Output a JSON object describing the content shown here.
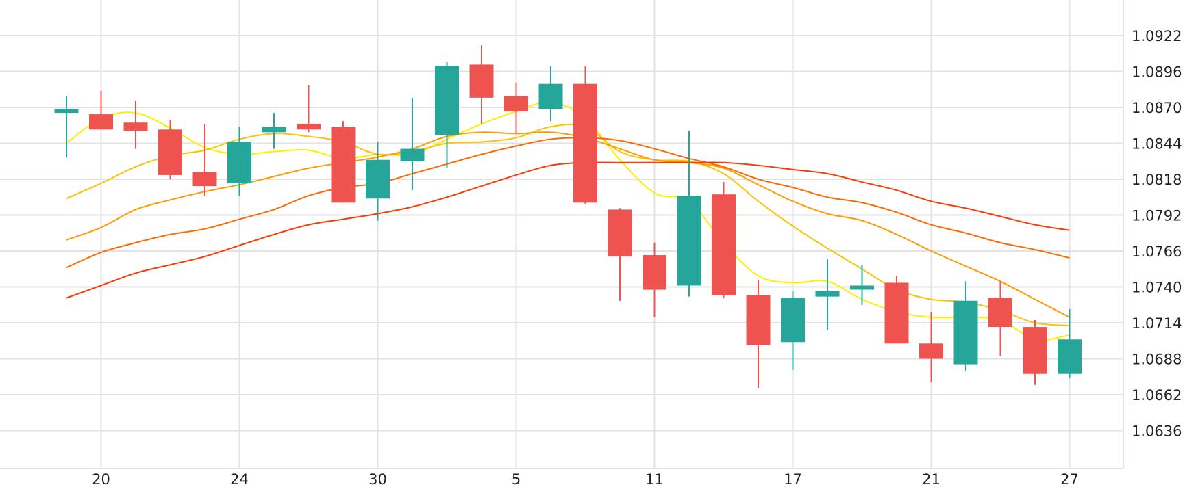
{
  "colors": {
    "up": "#26a69a",
    "down": "#ef5350",
    "grid": "#e2e2e2",
    "axis_text": "#222222",
    "ma_colors": [
      "#ffee00",
      "#ffc200",
      "#ff9a00",
      "#ff6a00",
      "#ff3a00"
    ]
  },
  "chart_data": {
    "type": "candlestick",
    "title": "",
    "xlabel": "",
    "ylabel": "",
    "ylim": [
      1.061,
      1.096
    ],
    "y_ticks": [
      "1.0636",
      "1.0662",
      "1.0688",
      "1.0714",
      "1.0740",
      "1.0766",
      "1.0792",
      "1.0818",
      "1.0844",
      "1.0870",
      "1.0896",
      "1.0922"
    ],
    "x_ticks": [
      {
        "label": "20",
        "index": 1
      },
      {
        "label": "24",
        "index": 5
      },
      {
        "label": "30",
        "index": 9
      },
      {
        "label": "5",
        "index": 13
      },
      {
        "label": "11",
        "index": 17
      },
      {
        "label": "17",
        "index": 21
      },
      {
        "label": "21",
        "index": 25
      },
      {
        "label": "27",
        "index": 29
      }
    ],
    "grid": true,
    "candles": [
      {
        "o": 1.0866,
        "h": 1.0878,
        "l": 1.0834,
        "c": 1.0869
      },
      {
        "o": 1.0865,
        "h": 1.0882,
        "l": 1.0854,
        "c": 1.0854
      },
      {
        "o": 1.0859,
        "h": 1.0875,
        "l": 1.084,
        "c": 1.0853
      },
      {
        "o": 1.0854,
        "h": 1.0861,
        "l": 1.0818,
        "c": 1.0821
      },
      {
        "o": 1.0823,
        "h": 1.0858,
        "l": 1.0806,
        "c": 1.0813
      },
      {
        "o": 1.0815,
        "h": 1.0856,
        "l": 1.0806,
        "c": 1.0845
      },
      {
        "o": 1.0852,
        "h": 1.0866,
        "l": 1.084,
        "c": 1.0856
      },
      {
        "o": 1.0858,
        "h": 1.0886,
        "l": 1.0852,
        "c": 1.0854
      },
      {
        "o": 1.0856,
        "h": 1.086,
        "l": 1.0801,
        "c": 1.0801
      },
      {
        "o": 1.0804,
        "h": 1.0845,
        "l": 1.0788,
        "c": 1.0832
      },
      {
        "o": 1.0831,
        "h": 1.0877,
        "l": 1.081,
        "c": 1.084
      },
      {
        "o": 1.085,
        "h": 1.0903,
        "l": 1.0826,
        "c": 1.09
      },
      {
        "o": 1.0901,
        "h": 1.0915,
        "l": 1.0858,
        "c": 1.0877
      },
      {
        "o": 1.0878,
        "h": 1.0888,
        "l": 1.0851,
        "c": 1.0867
      },
      {
        "o": 1.0869,
        "h": 1.09,
        "l": 1.086,
        "c": 1.0887
      },
      {
        "o": 1.0887,
        "h": 1.09,
        "l": 1.08,
        "c": 1.0801
      },
      {
        "o": 1.0796,
        "h": 1.0797,
        "l": 1.073,
        "c": 1.0762
      },
      {
        "o": 1.0763,
        "h": 1.0772,
        "l": 1.0718,
        "c": 1.0738
      },
      {
        "o": 1.0741,
        "h": 1.0853,
        "l": 1.0733,
        "c": 1.0806
      },
      {
        "o": 1.0807,
        "h": 1.0816,
        "l": 1.0732,
        "c": 1.0734
      },
      {
        "o": 1.0734,
        "h": 1.0745,
        "l": 1.0667,
        "c": 1.0698
      },
      {
        "o": 1.07,
        "h": 1.0737,
        "l": 1.068,
        "c": 1.0732
      },
      {
        "o": 1.0733,
        "h": 1.076,
        "l": 1.0709,
        "c": 1.0737
      },
      {
        "o": 1.0739,
        "h": 1.0756,
        "l": 1.0727,
        "c": 1.0741
      },
      {
        "o": 1.0743,
        "h": 1.0748,
        "l": 1.0699,
        "c": 1.0699
      },
      {
        "o": 1.0699,
        "h": 1.0722,
        "l": 1.0671,
        "c": 1.0688
      },
      {
        "o": 1.0684,
        "h": 1.0744,
        "l": 1.0679,
        "c": 1.073
      },
      {
        "o": 1.0732,
        "h": 1.0744,
        "l": 1.069,
        "c": 1.0711
      },
      {
        "o": 1.0711,
        "h": 1.0716,
        "l": 1.0669,
        "c": 1.0677
      },
      {
        "o": 1.0677,
        "h": 1.0724,
        "l": 1.0674,
        "c": 1.0702
      }
    ],
    "series": [
      {
        "values": [
          1.0844,
          1.0862,
          1.0866,
          1.0855,
          1.0841,
          1.0836,
          1.0838,
          1.0839,
          1.0833,
          1.0836,
          1.0836,
          1.0847,
          1.0858,
          1.0867,
          1.0874,
          1.0862,
          1.0832,
          1.0808,
          1.0802,
          1.0772,
          1.0748,
          1.0743,
          1.0744,
          1.0731,
          1.0722,
          1.0718,
          1.0718,
          1.0716,
          1.0702,
          1.0705
        ]
      },
      {
        "values": [
          1.0804,
          1.0815,
          1.0827,
          1.0835,
          1.0839,
          1.0847,
          1.0851,
          1.0849,
          1.0845,
          1.0836,
          1.0838,
          1.0844,
          1.0845,
          1.0848,
          1.0856,
          1.0856,
          1.0838,
          1.0832,
          1.0831,
          1.0822,
          1.0802,
          1.0784,
          1.0768,
          1.0753,
          1.0738,
          1.0731,
          1.0729,
          1.0723,
          1.0714,
          1.0712
        ]
      },
      {
        "values": [
          1.0774,
          1.0783,
          1.0796,
          1.0803,
          1.0809,
          1.0814,
          1.082,
          1.0826,
          1.083,
          1.0834,
          1.084,
          1.0849,
          1.0852,
          1.0851,
          1.0852,
          1.0848,
          1.084,
          1.0832,
          1.083,
          1.0826,
          1.0814,
          1.0802,
          1.0793,
          1.0788,
          1.0778,
          1.0766,
          1.0755,
          1.0744,
          1.0731,
          1.0718
        ]
      },
      {
        "values": [
          1.0754,
          1.0765,
          1.0772,
          1.0778,
          1.0782,
          1.0789,
          1.0796,
          1.0806,
          1.0812,
          1.0815,
          1.0822,
          1.0829,
          1.0836,
          1.0842,
          1.0847,
          1.0848,
          1.0846,
          1.084,
          1.0833,
          1.0827,
          1.0818,
          1.0812,
          1.0805,
          1.0801,
          1.0794,
          1.0785,
          1.0779,
          1.0772,
          1.0767,
          1.0761
        ]
      },
      {
        "values": [
          1.0732,
          1.0741,
          1.075,
          1.0756,
          1.0762,
          1.077,
          1.0778,
          1.0785,
          1.0789,
          1.0793,
          1.0798,
          1.0805,
          1.0813,
          1.0821,
          1.0828,
          1.083,
          1.083,
          1.083,
          1.083,
          1.083,
          1.0828,
          1.0825,
          1.0822,
          1.0816,
          1.081,
          1.0802,
          1.0797,
          1.0791,
          1.0785,
          1.0781
        ]
      }
    ]
  }
}
